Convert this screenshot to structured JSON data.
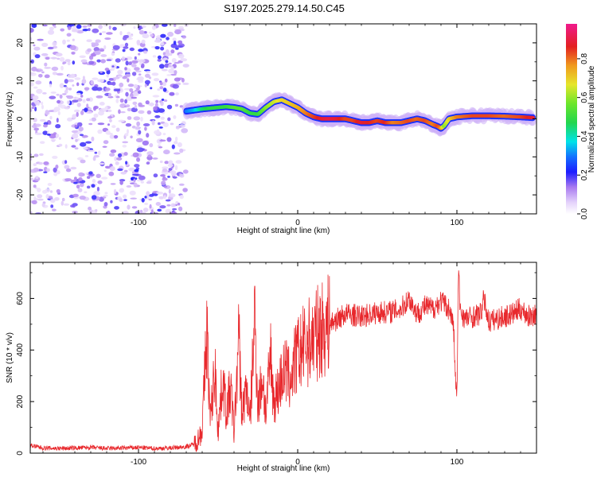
{
  "title": "S197.2025.279.14.50.C45",
  "colors": {
    "snr_line": "#e8282c",
    "axis": "#000000",
    "spec_low": "#c8a6f2",
    "spec_mid": "#2233ff",
    "spec_high": "#e32020"
  },
  "colorbar": {
    "label": "Normalized spectral amplitude",
    "ticks": [
      "0.0",
      "0.2",
      "0.4",
      "0.6",
      "0.8"
    ],
    "tick_values": [
      0.0,
      0.2,
      0.4,
      0.6,
      0.8
    ],
    "range": [
      0,
      0.98
    ]
  },
  "chart_data": [
    {
      "type": "heatmap",
      "name": "spectrogram",
      "xlabel": "Height of straight line (km)",
      "ylabel": "Frequency (Hz)",
      "xlim": [
        -168,
        150
      ],
      "ylim": [
        -25,
        25
      ],
      "xticks": [
        -100,
        0,
        100
      ],
      "xtick_labels": [
        "-100",
        "0",
        "100"
      ],
      "yticks": [
        -20,
        -10,
        0,
        10,
        20
      ],
      "ytick_labels": [
        "-20",
        "-10",
        "0",
        "10",
        "20"
      ],
      "noise_region": {
        "x": [
          -168,
          -70
        ],
        "amplitude": "low (0.0-0.3)"
      },
      "signal_ridge": {
        "x": [
          -70,
          -65,
          -60,
          -55,
          -50,
          -45,
          -40,
          -35,
          -30,
          -25,
          -20,
          -15,
          -10,
          -5,
          0,
          5,
          10,
          15,
          20,
          25,
          30,
          35,
          40,
          45,
          50,
          55,
          60,
          65,
          70,
          75,
          80,
          85,
          88,
          90,
          92,
          95,
          100,
          110,
          120,
          130,
          140,
          148
        ],
        "freq": [
          2,
          2.3,
          2.6,
          2.8,
          3,
          3.2,
          3,
          2.6,
          1.5,
          1.2,
          3,
          4.5,
          5,
          4,
          3,
          1.5,
          0.5,
          0,
          0,
          0,
          0,
          -0.5,
          -1,
          -1,
          -0.5,
          -1,
          -1,
          -1,
          -0.5,
          0,
          -0.5,
          -1.5,
          -2,
          -2.5,
          -1.8,
          0,
          0.5,
          0.8,
          0.8,
          0.7,
          0.5,
          0.3
        ],
        "amplitude": [
          0.3,
          0.35,
          0.45,
          0.5,
          0.5,
          0.5,
          0.55,
          0.55,
          0.5,
          0.5,
          0.6,
          0.65,
          0.7,
          0.72,
          0.75,
          0.8,
          0.85,
          0.9,
          0.92,
          0.9,
          0.85,
          0.85,
          0.9,
          0.88,
          0.85,
          0.88,
          0.8,
          0.82,
          0.85,
          0.82,
          0.85,
          0.8,
          0.85,
          0.8,
          0.6,
          0.7,
          0.8,
          0.85,
          0.85,
          0.82,
          0.85,
          0.9
        ]
      }
    },
    {
      "type": "line",
      "name": "snr",
      "xlabel": "Height of straight line (km)",
      "ylabel": "SNR (10 * v/v)",
      "xlim": [
        -168,
        150
      ],
      "ylim": [
        0,
        740
      ],
      "xticks": [
        -100,
        0,
        100
      ],
      "xtick_labels": [
        "-100",
        "0",
        "100"
      ],
      "yticks": [
        0,
        200,
        400,
        600
      ],
      "ytick_labels": [
        "0",
        "200",
        "400",
        "600"
      ],
      "x": [
        -168,
        -160,
        -150,
        -140,
        -130,
        -120,
        -110,
        -100,
        -90,
        -80,
        -70,
        -65,
        -62,
        -60,
        -57,
        -55,
        -52,
        -50,
        -47,
        -45,
        -42,
        -40,
        -37,
        -35,
        -32,
        -30,
        -27,
        -25,
        -22,
        -20,
        -17,
        -15,
        -12,
        -10,
        -7,
        -5,
        -2,
        0,
        5,
        10,
        15,
        20,
        25,
        30,
        40,
        50,
        60,
        65,
        70,
        75,
        80,
        85,
        90,
        95,
        97,
        98,
        99,
        100,
        101,
        102,
        105,
        110,
        115,
        117,
        120,
        125,
        130,
        135,
        140,
        145,
        150
      ],
      "y": [
        30,
        20,
        18,
        20,
        22,
        18,
        20,
        22,
        18,
        20,
        25,
        35,
        60,
        100,
        480,
        120,
        330,
        90,
        300,
        160,
        250,
        80,
        450,
        150,
        260,
        110,
        540,
        180,
        300,
        150,
        380,
        200,
        250,
        300,
        320,
        280,
        350,
        380,
        420,
        450,
        480,
        500,
        520,
        540,
        530,
        545,
        550,
        560,
        600,
        540,
        570,
        560,
        590,
        560,
        520,
        480,
        300,
        210,
        720,
        560,
        520,
        530,
        540,
        600,
        510,
        520,
        530,
        540,
        560,
        530,
        540
      ]
    }
  ]
}
